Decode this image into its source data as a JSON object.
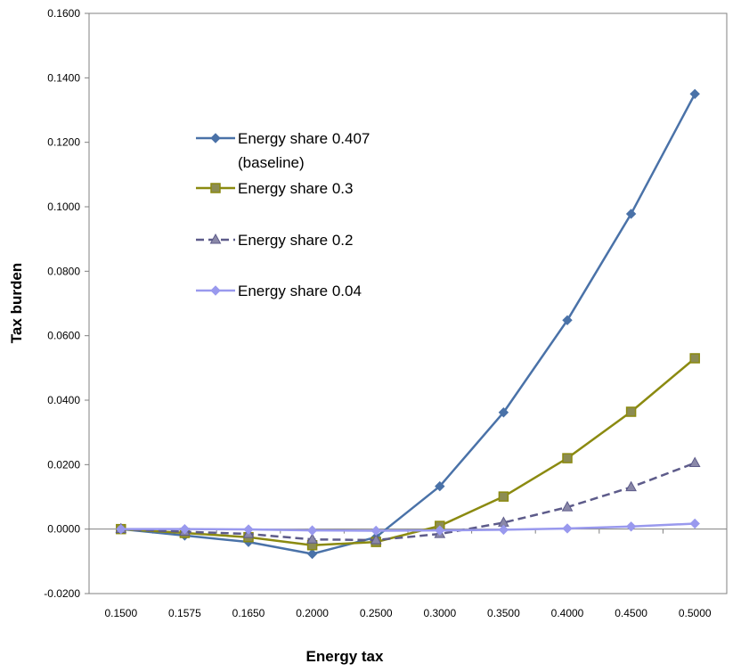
{
  "chart_data": {
    "type": "line",
    "title": "",
    "xlabel": "Energy tax",
    "ylabel": "Tax burden",
    "categories": [
      "0.1500",
      "0.1575",
      "0.1650",
      "0.2000",
      "0.2500",
      "0.3000",
      "0.3500",
      "0.4000",
      "0.4500",
      "0.5000"
    ],
    "y_ticks": [
      "-0.0200",
      "0.0000",
      "0.0200",
      "0.0400",
      "0.0600",
      "0.0800",
      "0.1000",
      "0.1200",
      "0.1400",
      "0.1600"
    ],
    "ylim": [
      -0.02,
      0.16
    ],
    "grid": false,
    "legend_position": "top-left inside plot",
    "series": [
      {
        "name_lines": [
          "Energy share 0.407",
          "(baseline)"
        ],
        "color": "#4a72a8",
        "marker": "diamond",
        "dash": "solid",
        "values": [
          0.0,
          -0.002,
          -0.004,
          -0.0077,
          -0.0025,
          0.0133,
          0.0362,
          0.0648,
          0.0978,
          0.135
        ]
      },
      {
        "name_lines": [
          "Energy share 0.3"
        ],
        "color": "#8b8a10",
        "marker": "square",
        "dash": "solid",
        "values": [
          0.0,
          -0.0012,
          -0.0025,
          -0.005,
          -0.004,
          0.001,
          0.0101,
          0.022,
          0.0364,
          0.053
        ]
      },
      {
        "name_lines": [
          "Energy share 0.2"
        ],
        "color": "#5d5b8a",
        "marker": "triangle",
        "dash": "dashed",
        "values": [
          0.0,
          -0.0008,
          -0.0015,
          -0.0032,
          -0.0034,
          -0.0015,
          0.002,
          0.0068,
          0.013,
          0.0205
        ]
      },
      {
        "name_lines": [
          "Energy share 0.04"
        ],
        "color": "#9999ee",
        "marker": "diamond",
        "dash": "solid",
        "values": [
          0.0,
          0.0,
          -0.0001,
          -0.0004,
          -0.0005,
          -0.0004,
          -0.0002,
          0.0002,
          0.0008,
          0.0017
        ]
      }
    ]
  }
}
